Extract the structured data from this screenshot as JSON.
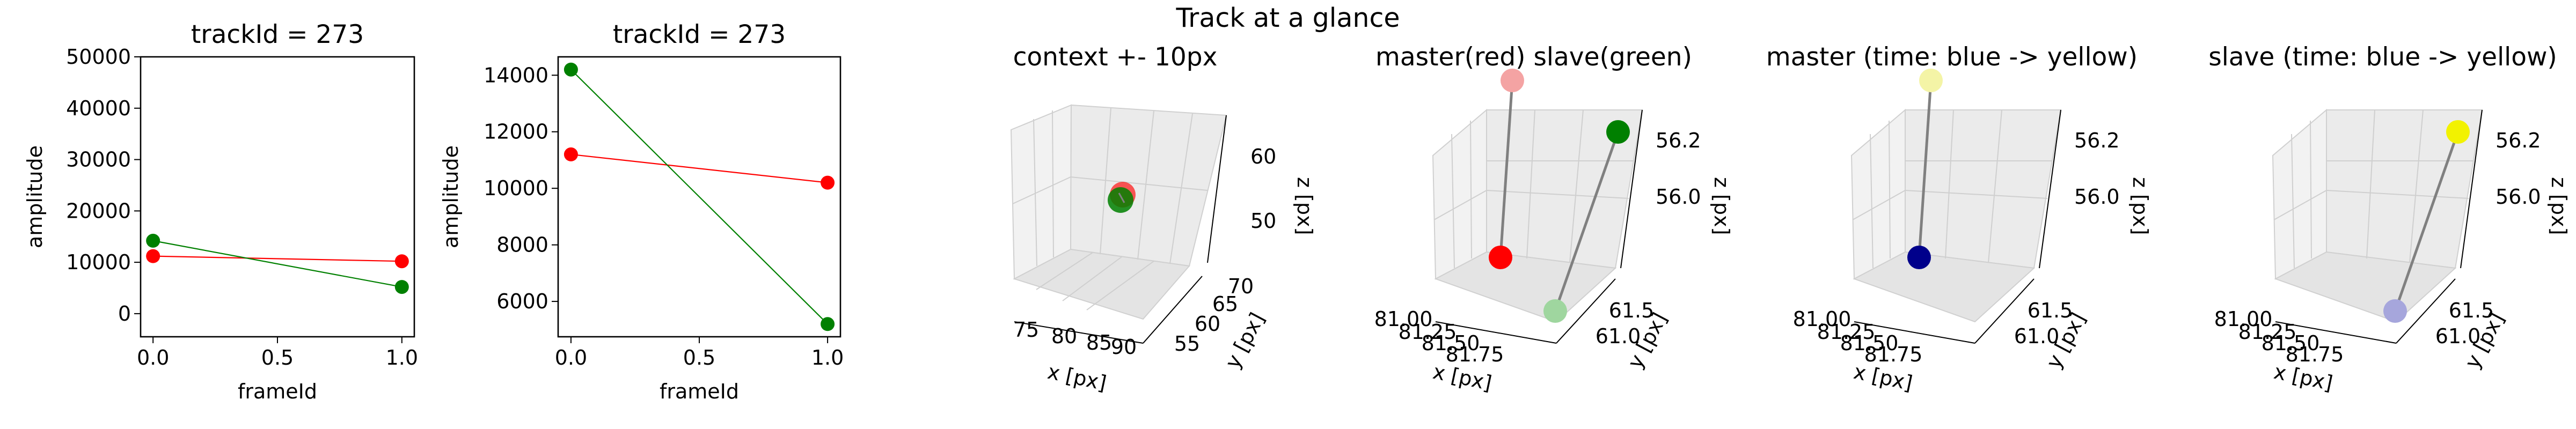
{
  "figure": {
    "suptitle": "Track at a glance"
  },
  "colors": {
    "master": "#ff0000",
    "slave": "#008000",
    "master_light": "#f4a3a3",
    "slave_light": "#9fd69f",
    "time_start": "#00008b",
    "time_start_light": "#a6a6dc",
    "time_end": "#f2f200",
    "time_end_light": "#f4f4a6",
    "link": "#808080",
    "pane": "#f2f2f2"
  },
  "chart_data": [
    {
      "type": "line",
      "title": "trackId = 273",
      "xlabel": "frameId",
      "ylabel": "amplitude",
      "x": [
        0.0,
        1.0
      ],
      "xlim": [
        -0.05,
        1.05
      ],
      "ylim": [
        -4500,
        50000
      ],
      "xticks": [
        "0.0",
        "0.5",
        "1.0"
      ],
      "yticks": [
        "0",
        "10000",
        "20000",
        "30000",
        "40000",
        "50000"
      ],
      "series": [
        {
          "role": "master",
          "values": [
            11200,
            10200
          ]
        },
        {
          "role": "slave",
          "values": [
            14200,
            5200
          ]
        }
      ]
    },
    {
      "type": "line",
      "title": "trackId = 273",
      "xlabel": "frameId",
      "ylabel": "amplitude",
      "x": [
        0.0,
        1.0
      ],
      "xlim": [
        -0.05,
        1.05
      ],
      "ylim": [
        4750,
        14650
      ],
      "xticks": [
        "0.0",
        "0.5",
        "1.0"
      ],
      "yticks": [
        "6000",
        "8000",
        "10000",
        "12000",
        "14000"
      ],
      "series": [
        {
          "role": "master",
          "values": [
            11200,
            10200
          ]
        },
        {
          "role": "slave",
          "values": [
            14200,
            5200
          ]
        }
      ]
    },
    {
      "type": "scatter",
      "projection": "3d",
      "title": "context +- 10px",
      "xlabel": "x [px]",
      "ylabel": "y [px]",
      "zlabel": "z [px]",
      "xticks": [
        "75",
        "80",
        "85",
        "90"
      ],
      "yticks": [
        "55",
        "60",
        "65",
        "70"
      ],
      "zticks": [
        "50",
        "60"
      ],
      "points": [
        {
          "role": "master",
          "x": 81.4,
          "y": 61.3,
          "z": 56.1
        },
        {
          "role": "slave",
          "x": 81.6,
          "y": 61.0,
          "z": 56.2
        }
      ]
    },
    {
      "type": "scatter",
      "projection": "3d",
      "title": "master(red) slave(green)",
      "xlabel": "x [px]",
      "ylabel": "y [px]",
      "zlabel": "z [px]",
      "xticks": [
        "81.00",
        "81.25",
        "81.50",
        "81.75"
      ],
      "yticks": [
        "61.0",
        "61.5"
      ],
      "zticks": [
        "56.0",
        "56.2"
      ],
      "points": [
        {
          "role": "master",
          "frame": 0,
          "x": 81.3,
          "y": 61.6,
          "z": 55.95
        },
        {
          "role": "master",
          "frame": 1,
          "x": 81.05,
          "y": 61.5,
          "z": 56.25
        },
        {
          "role": "slave",
          "frame": 0,
          "x": 81.8,
          "y": 61.0,
          "z": 56.25
        },
        {
          "role": "slave",
          "frame": 1,
          "x": 81.85,
          "y": 61.1,
          "z": 55.9
        }
      ]
    },
    {
      "type": "scatter",
      "projection": "3d",
      "title": "master (time: blue -> yellow)",
      "xlabel": "x [px]",
      "ylabel": "y [px]",
      "zlabel": "z [px]",
      "xticks": [
        "81.00",
        "81.25",
        "81.50",
        "81.75"
      ],
      "yticks": [
        "61.0",
        "61.5"
      ],
      "zticks": [
        "56.0",
        "56.2"
      ],
      "points": [
        {
          "role": "master",
          "frame": 0,
          "x": 81.3,
          "y": 61.6,
          "z": 55.95
        },
        {
          "role": "master",
          "frame": 1,
          "x": 81.05,
          "y": 61.5,
          "z": 56.25
        }
      ]
    },
    {
      "type": "scatter",
      "projection": "3d",
      "title": "slave (time: blue -> yellow)",
      "xlabel": "x [px]",
      "ylabel": "y [px]",
      "zlabel": "z [px]",
      "xticks": [
        "81.00",
        "81.25",
        "81.50",
        "81.75"
      ],
      "yticks": [
        "61.0",
        "61.5"
      ],
      "zticks": [
        "56.0",
        "56.2"
      ],
      "points": [
        {
          "role": "slave",
          "frame": 0,
          "x": 81.8,
          "y": 61.0,
          "z": 56.25
        },
        {
          "role": "slave",
          "frame": 1,
          "x": 81.85,
          "y": 61.1,
          "z": 55.9
        }
      ]
    }
  ]
}
